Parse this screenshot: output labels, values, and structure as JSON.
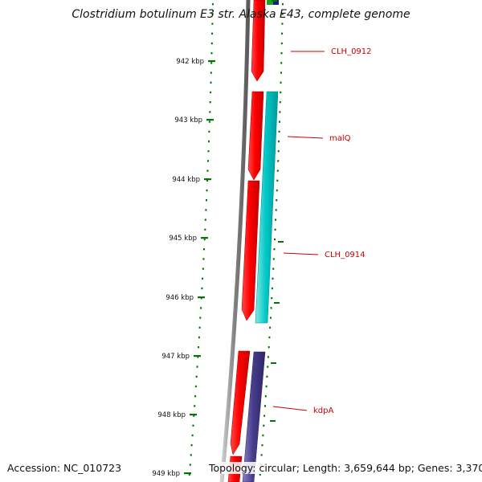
{
  "map": {
    "title": "Clostridium botulinum E3 str. Alaska E43, complete genome",
    "accession_text": "Accession: NC_010723",
    "summary_text": "Topology: circular; Length: 3,659,644 bp; Genes: 3,370",
    "tick_labels": [
      "942 kbp",
      "943 kbp",
      "944 kbp",
      "945 kbp",
      "946 kbp",
      "947 kbp",
      "948 kbp",
      "949 kbp"
    ],
    "gene_labels": [
      "CLH_0912",
      "malQ",
      "CLH_0914",
      "kdpA"
    ],
    "colors": {
      "forward_cds": "#ff0000",
      "reverse_cds_cyan": "#00c8c8",
      "reverse_cds_purple": "#483d8b",
      "backbone": "#808080",
      "tick": "#007700",
      "gene_label": "#cc0000"
    }
  }
}
